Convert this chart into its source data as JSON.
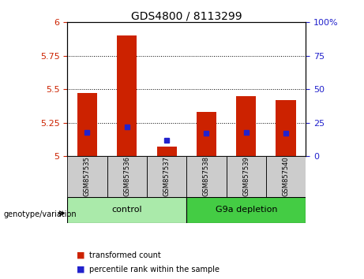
{
  "title": "GDS4800 / 8113299",
  "samples": [
    "GSM857535",
    "GSM857536",
    "GSM857537",
    "GSM857538",
    "GSM857539",
    "GSM857540"
  ],
  "transformed_counts": [
    5.47,
    5.9,
    5.07,
    5.33,
    5.45,
    5.42
  ],
  "percentile_ranks": [
    18,
    22,
    12,
    17,
    18,
    17
  ],
  "ylim_left": [
    5.0,
    6.0
  ],
  "ylim_right": [
    0,
    100
  ],
  "yticks_left": [
    5.0,
    5.25,
    5.5,
    5.75,
    6.0
  ],
  "ytick_labels_left": [
    "5",
    "5.25",
    "5.5",
    "5.75",
    "6"
  ],
  "yticks_right": [
    0,
    25,
    50,
    75,
    100
  ],
  "ytick_labels_right": [
    "0",
    "25",
    "50",
    "75",
    "100%"
  ],
  "bar_color": "#cc2200",
  "dot_color": "#2222cc",
  "groups": [
    {
      "label": "control",
      "indices": [
        0,
        1,
        2
      ],
      "color": "#aaeaaa"
    },
    {
      "label": "G9a depletion",
      "indices": [
        3,
        4,
        5
      ],
      "color": "#44cc44"
    }
  ],
  "legend_items": [
    {
      "label": "transformed count",
      "color": "#cc2200"
    },
    {
      "label": "percentile rank within the sample",
      "color": "#2222cc"
    }
  ],
  "left_tick_color": "#cc2200",
  "right_tick_color": "#2222cc",
  "group_label": "genotype/variation"
}
